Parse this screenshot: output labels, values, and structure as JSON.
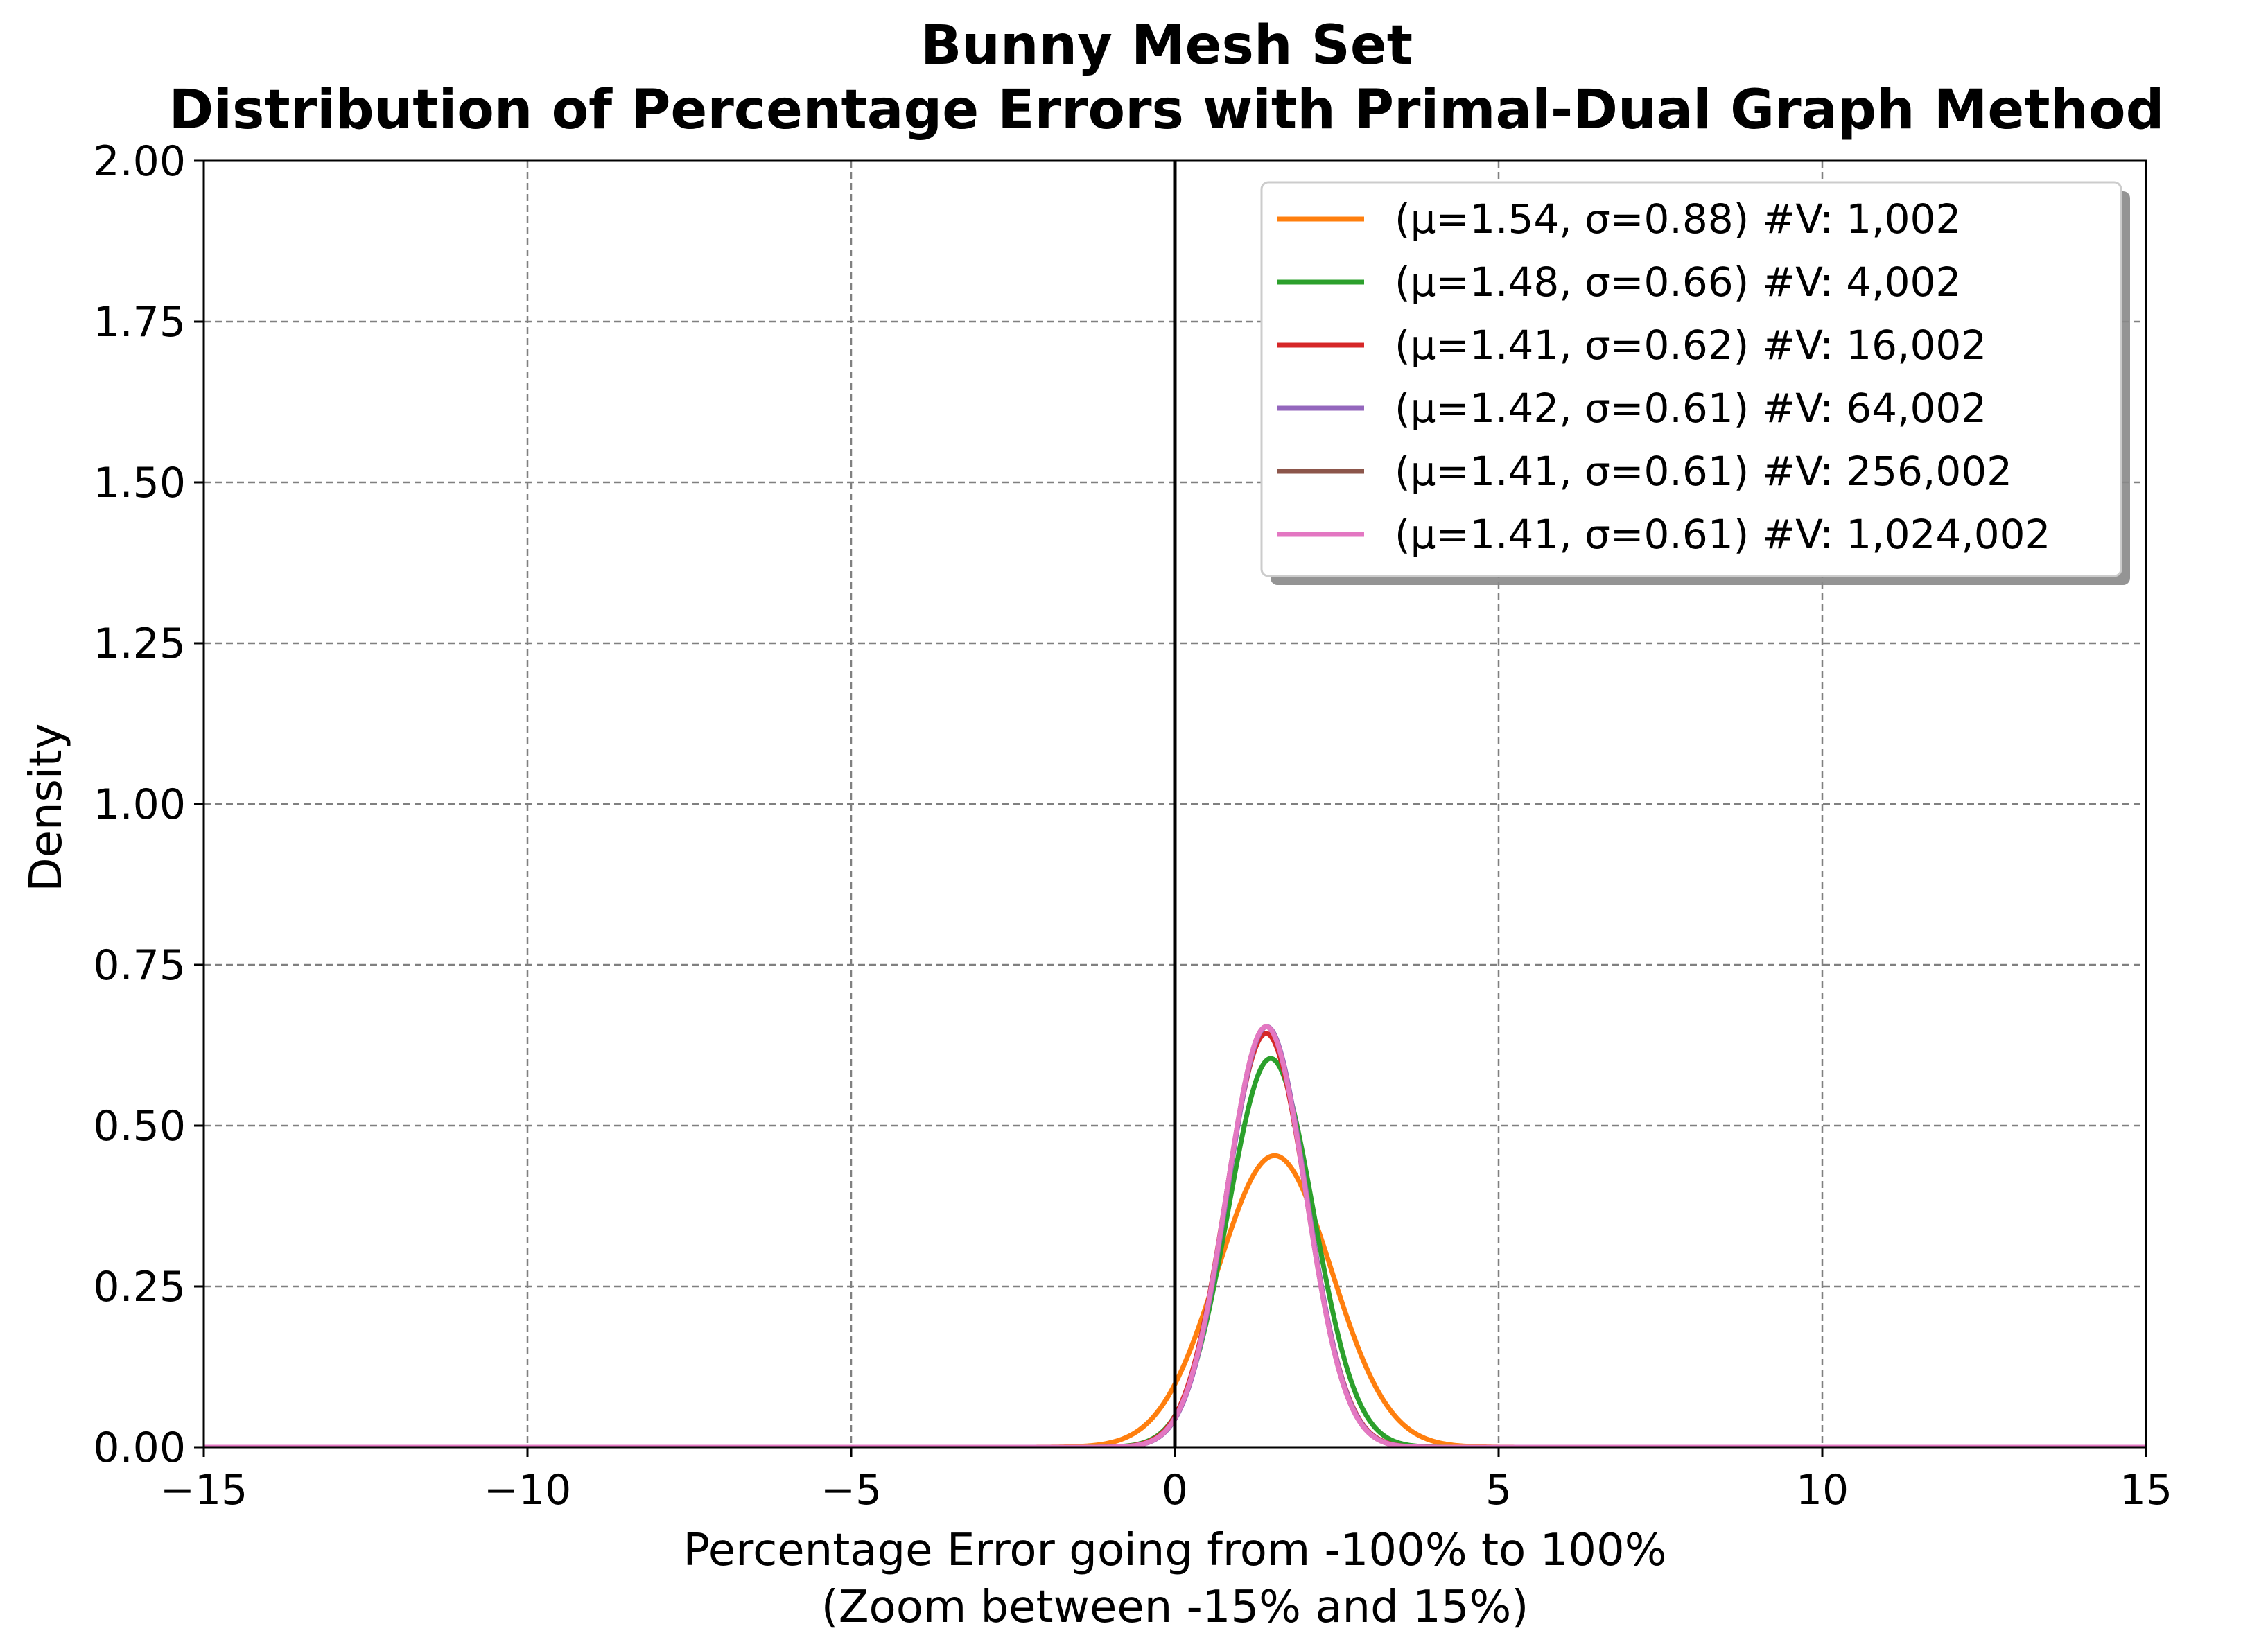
{
  "chart_data": {
    "type": "line",
    "title": "Bunny Mesh Set",
    "subtitle": "Distribution of Percentage Errors with Primal-Dual Graph Method",
    "xlabel": "Percentage Error going from -100% to 100%",
    "xlabel_line2": "(Zoom between -15% and 15%)",
    "ylabel": "Density",
    "xlim": [
      -15,
      15
    ],
    "ylim": [
      0,
      2.0
    ],
    "xticks": [
      -15,
      -10,
      -5,
      0,
      5,
      10,
      15
    ],
    "xtick_labels": [
      "−15",
      "−10",
      "−5",
      "0",
      "5",
      "10",
      "15"
    ],
    "yticks": [
      0,
      0.25,
      0.5,
      0.75,
      1.0,
      1.25,
      1.5,
      1.75,
      2.0
    ],
    "ytick_labels": [
      "0.00",
      "0.25",
      "0.50",
      "0.75",
      "1.00",
      "1.25",
      "1.50",
      "1.75",
      "2.00"
    ],
    "grid": true,
    "vertical_reference_line": 0,
    "legend_position": "upper-right",
    "series": [
      {
        "name": "(μ=1.54, σ=0.88) #V: 1,002",
        "mu": 1.54,
        "sigma": 0.88,
        "color": "#ff7f0e"
      },
      {
        "name": "(μ=1.48, σ=0.66) #V: 4,002",
        "mu": 1.48,
        "sigma": 0.66,
        "color": "#2ca02c"
      },
      {
        "name": "(μ=1.41, σ=0.62) #V: 16,002",
        "mu": 1.41,
        "sigma": 0.62,
        "color": "#d62728"
      },
      {
        "name": "(μ=1.42, σ=0.61) #V: 64,002",
        "mu": 1.42,
        "sigma": 0.61,
        "color": "#9467bd"
      },
      {
        "name": "(μ=1.41, σ=0.61) #V: 256,002",
        "mu": 1.41,
        "sigma": 0.61,
        "color": "#8c564b"
      },
      {
        "name": "(μ=1.41, σ=0.61) #V: 1,024,002",
        "mu": 1.41,
        "sigma": 0.61,
        "color": "#e377c2"
      }
    ]
  }
}
